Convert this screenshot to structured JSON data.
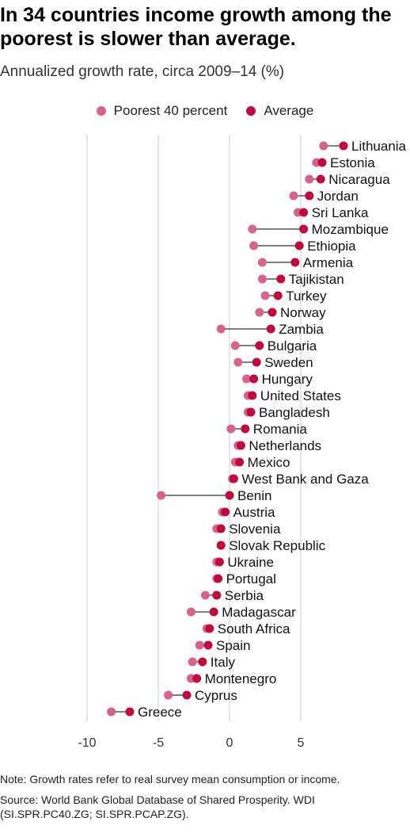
{
  "header": {
    "title": "In 34 countries income growth among the poorest is slower than average.",
    "subtitle": "Annualized growth rate, circa 2009–14 (%)"
  },
  "footer": {
    "note": "Note: Growth rates refer to real survey mean consumption or income.",
    "source": "Source: World Bank Global Database of Shared Prosperity. WDI (SI.SPR.PC40.ZG; SI.SPR.PCAP.ZG)."
  },
  "colors": {
    "poorest": "#d9628a",
    "average": "#c10a3a",
    "connector": "#333333",
    "grid": "#dddddd"
  },
  "chart_data": {
    "type": "dumbbell",
    "title": "In 34 countries income growth among the poorest is slower than average.",
    "subtitle": "Annualized growth rate, circa 2009–14 (%)",
    "xlim": [
      -10,
      10
    ],
    "xticks": [
      -10,
      -5,
      0,
      5
    ],
    "grid": true,
    "legend_position": "top-center",
    "series": [
      {
        "name": "Poorest 40 percent",
        "key": "poorest"
      },
      {
        "name": "Average",
        "key": "average"
      }
    ],
    "countries": [
      {
        "name": "Lithuania",
        "poorest": 6.6,
        "average": 8.0
      },
      {
        "name": "Estonia",
        "poorest": 6.1,
        "average": 6.5
      },
      {
        "name": "Nicaragua",
        "poorest": 5.6,
        "average": 6.4
      },
      {
        "name": "Jordan",
        "poorest": 4.5,
        "average": 5.6
      },
      {
        "name": "Sri Lanka",
        "poorest": 4.8,
        "average": 5.2
      },
      {
        "name": "Mozambique",
        "poorest": 1.6,
        "average": 5.2
      },
      {
        "name": "Ethiopia",
        "poorest": 1.7,
        "average": 4.9
      },
      {
        "name": "Armenia",
        "poorest": 2.3,
        "average": 4.6
      },
      {
        "name": "Tajikistan",
        "poorest": 2.3,
        "average": 3.6
      },
      {
        "name": "Turkey",
        "poorest": 2.5,
        "average": 3.4
      },
      {
        "name": "Norway",
        "poorest": 2.1,
        "average": 3.0
      },
      {
        "name": "Zambia",
        "poorest": -0.6,
        "average": 2.9
      },
      {
        "name": "Bulgaria",
        "poorest": 0.4,
        "average": 2.1
      },
      {
        "name": "Sweden",
        "poorest": 0.6,
        "average": 1.9
      },
      {
        "name": "Hungary",
        "poorest": 1.2,
        "average": 1.7
      },
      {
        "name": "United States",
        "poorest": 1.3,
        "average": 1.6
      },
      {
        "name": "Bangladesh",
        "poorest": 1.3,
        "average": 1.5
      },
      {
        "name": "Romania",
        "poorest": 0.1,
        "average": 1.1
      },
      {
        "name": "Netherlands",
        "poorest": 0.6,
        "average": 0.8
      },
      {
        "name": "Mexico",
        "poorest": 0.4,
        "average": 0.7
      },
      {
        "name": "West Bank and Gaza",
        "poorest": 0.2,
        "average": 0.3
      },
      {
        "name": "Benin",
        "poorest": -4.8,
        "average": 0.0
      },
      {
        "name": "Austria",
        "poorest": -0.5,
        "average": -0.3
      },
      {
        "name": "Slovenia",
        "poorest": -0.9,
        "average": -0.6
      },
      {
        "name": "Slovak Republic",
        "poorest": -0.6,
        "average": -0.6
      },
      {
        "name": "Ukraine",
        "poorest": -0.9,
        "average": -0.7
      },
      {
        "name": "Portugal",
        "poorest": -0.9,
        "average": -0.8
      },
      {
        "name": "Serbia",
        "poorest": -1.7,
        "average": -0.9
      },
      {
        "name": "Madagascar",
        "poorest": -2.7,
        "average": -1.1
      },
      {
        "name": "South Africa",
        "poorest": -1.6,
        "average": -1.4
      },
      {
        "name": "Spain",
        "poorest": -2.1,
        "average": -1.5
      },
      {
        "name": "Italy",
        "poorest": -2.6,
        "average": -1.9
      },
      {
        "name": "Montenegro",
        "poorest": -2.7,
        "average": -2.3
      },
      {
        "name": "Cyprus",
        "poorest": -4.3,
        "average": -3.0
      },
      {
        "name": "Greece",
        "poorest": -8.3,
        "average": -7.0
      }
    ]
  }
}
